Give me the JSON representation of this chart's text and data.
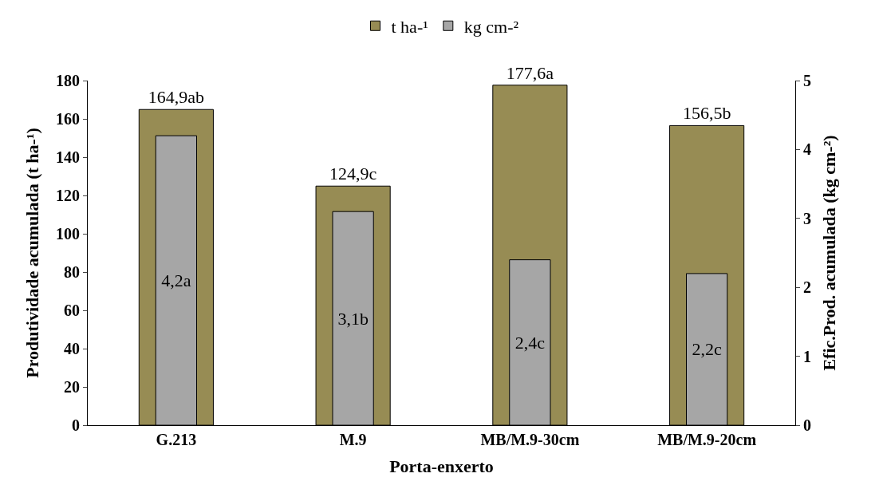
{
  "chart_data": {
    "type": "bar",
    "xlabel": "Porta-enxerto",
    "ylabel": "Produtividade acumulada (t ha-¹)",
    "y2label": "Efic.Prod. acumulada (kg cm-²)",
    "categories": [
      "G.213",
      "M.9",
      "MB/M.9-30cm",
      "MB/M.9-20cm"
    ],
    "series": [
      {
        "name": "t ha-¹",
        "color": "#978c54",
        "values": [
          164.9,
          124.9,
          177.6,
          156.5
        ],
        "value_labels": [
          "164,9ab",
          "124,9c",
          "177,6a",
          "156,5b"
        ]
      },
      {
        "name": "kg cm-²",
        "color": "#a6a6a6",
        "axis": "y2",
        "values": [
          4.2,
          3.1,
          2.4,
          2.2
        ],
        "value_labels": [
          "4,2a",
          "3,1b",
          "2,4c",
          "2,2c"
        ]
      }
    ],
    "ylim": [
      0,
      180
    ],
    "yticks": [
      0,
      20,
      40,
      60,
      80,
      100,
      120,
      140,
      160,
      180
    ],
    "y2lim": [
      0,
      5
    ],
    "y2ticks": [
      0,
      1,
      2,
      3,
      4,
      5
    ],
    "grid": false,
    "legend": "top"
  }
}
